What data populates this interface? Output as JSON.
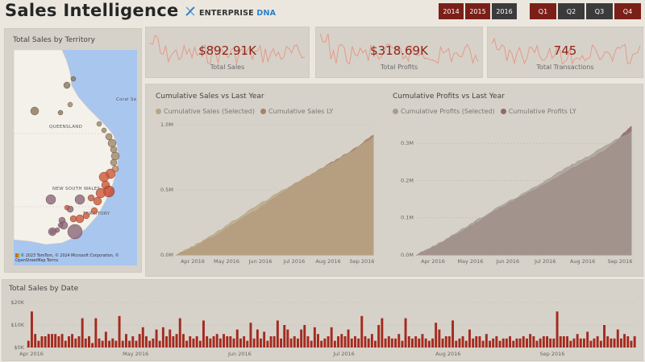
{
  "header": {
    "title": "Sales Intelligence",
    "brand": {
      "main": "ENTERPRISE",
      "accent": "DNA"
    }
  },
  "slicers": {
    "years": [
      {
        "label": "2014",
        "selected": true
      },
      {
        "label": "2015",
        "selected": true
      },
      {
        "label": "2016",
        "selected": false
      }
    ],
    "quarters": [
      {
        "label": "Q1",
        "selected": true
      },
      {
        "label": "Q2",
        "selected": false
      },
      {
        "label": "Q3",
        "selected": false
      },
      {
        "label": "Q4",
        "selected": true
      }
    ]
  },
  "map": {
    "title": "Total Sales by Territory",
    "labels": [
      "QUEENSLAND",
      "NEW SOUTH WALES",
      "Coral Se",
      "TERRITORY"
    ],
    "credit": "© 2023 TomTom, © 2024 Microsoft Corporation, © OpenStreetMap  Terms"
  },
  "kpis": [
    {
      "value": "$892.91K",
      "label": "Total Sales"
    },
    {
      "value": "$318.69K",
      "label": "Total Profits"
    },
    {
      "value": "745",
      "label": "Total Transactions"
    }
  ],
  "colors": {
    "accent": "#7a2018",
    "kpi": "#8f2418",
    "selected_area": "#b7a583",
    "ly_area": "#a98068",
    "profit_selected": "#a69c93",
    "profit_ly": "#8e6a6a",
    "bar": "#a52a1f"
  },
  "chart_data": [
    {
      "type": "area",
      "title": "Cumulative Sales vs Last Year",
      "series": [
        {
          "name": "Cumulative Sales (Selected)",
          "color": "#b7a583",
          "values": [
            0,
            0.08,
            0.17,
            0.27,
            0.37,
            0.46,
            0.55,
            0.63,
            0.71,
            0.8,
            0.9
          ]
        },
        {
          "name": "Cumulative Sales LY",
          "color": "#a98068",
          "values": [
            0,
            0.07,
            0.15,
            0.25,
            0.34,
            0.44,
            0.54,
            0.63,
            0.72,
            0.81,
            0.92
          ]
        }
      ],
      "x": [
        "Apr 2016",
        "",
        "May 2016",
        "",
        "Jun 2016",
        "",
        "Jul 2016",
        "",
        "Aug 2016",
        "",
        "Sep 2016"
      ],
      "xlabels": [
        "Apr 2016",
        "May 2016",
        "Jun 2016",
        "Jul 2016",
        "Aug 2016",
        "Sep 2016"
      ],
      "yticks": [
        "0.0M",
        "0.5M",
        "1.0M"
      ],
      "ylim": [
        0,
        1.0
      ]
    },
    {
      "type": "area",
      "title": "Cumulative Profits vs Last Year",
      "series": [
        {
          "name": "Cumulative Profits (Selected)",
          "color": "#a69c93",
          "values": [
            0,
            0.03,
            0.065,
            0.1,
            0.135,
            0.165,
            0.2,
            0.235,
            0.265,
            0.3,
            0.33
          ]
        },
        {
          "name": "Cumulative Profits LY",
          "color": "#8e6a6a",
          "values": [
            0,
            0.028,
            0.06,
            0.095,
            0.13,
            0.16,
            0.19,
            0.225,
            0.255,
            0.29,
            0.345
          ]
        }
      ],
      "x": [
        "Apr 2016",
        "",
        "May 2016",
        "",
        "Jun 2016",
        "",
        "Jul 2016",
        "",
        "Aug 2016",
        "",
        "Sep 2016"
      ],
      "xlabels": [
        "Apr 2016",
        "May 2016",
        "Jun 2016",
        "Jul 2016",
        "Aug 2016",
        "Sep 2016"
      ],
      "yticks": [
        "0.0M",
        "0.1M",
        "0.2M",
        "0.3M"
      ],
      "ylim": [
        0,
        0.35
      ]
    },
    {
      "type": "bar",
      "title": "Total Sales by Date",
      "xlabels": [
        "Apr 2016",
        "May 2016",
        "Jun 2016",
        "Jul 2016",
        "Aug 2016",
        "Sep 2016"
      ],
      "yticks": [
        "$0K",
        "$10K",
        "$20K"
      ],
      "ylim": [
        0,
        20
      ],
      "values": [
        3,
        16,
        6,
        3,
        5,
        5,
        6,
        6,
        6,
        5,
        6,
        3,
        5,
        6,
        4,
        5,
        13,
        4,
        5,
        2,
        13,
        4,
        3,
        7,
        3,
        4,
        3,
        14,
        3,
        6,
        3,
        5,
        3,
        6,
        9,
        5,
        3,
        4,
        8,
        3,
        9,
        5,
        8,
        5,
        6,
        13,
        6,
        3,
        5,
        4,
        5,
        3,
        12,
        5,
        4,
        5,
        6,
        4,
        6,
        5,
        5,
        4,
        8,
        4,
        5,
        3,
        11,
        4,
        8,
        4,
        7,
        3,
        5,
        5,
        12,
        4,
        10,
        8,
        4,
        5,
        4,
        8,
        10,
        5,
        3,
        9,
        6,
        3,
        4,
        5,
        9,
        3,
        5,
        6,
        5,
        8,
        4,
        5,
        4,
        14,
        5,
        4,
        6,
        3,
        10,
        13,
        4,
        5,
        4,
        4,
        6,
        3,
        13,
        5,
        4,
        5,
        4,
        6,
        4,
        3,
        4,
        11,
        8,
        4,
        5,
        5,
        12,
        3,
        4,
        5,
        3,
        8,
        4,
        5,
        5,
        3,
        6,
        3,
        4,
        5,
        3,
        4,
        4,
        5,
        3,
        4,
        4,
        5,
        4,
        6,
        5,
        3,
        4,
        5,
        5,
        4,
        4,
        16,
        5,
        5,
        5,
        3,
        4,
        6,
        4,
        4,
        7,
        3,
        4,
        5,
        3,
        10,
        5,
        4,
        4,
        8,
        4,
        6,
        5,
        3,
        5
      ]
    }
  ]
}
